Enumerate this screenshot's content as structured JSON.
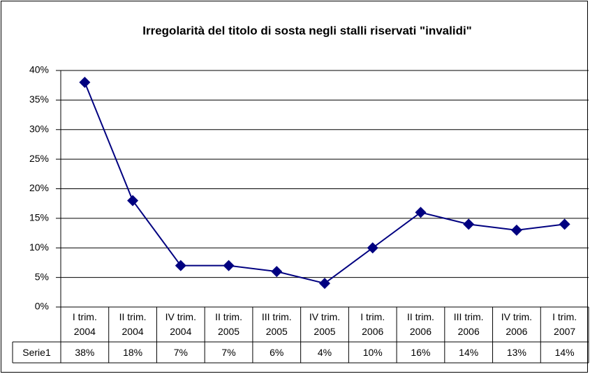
{
  "chart_data": {
    "type": "line",
    "title": "Irregolarità del titolo di sosta negli stalli riservati \"invalidi\"",
    "categories": [
      "I trim. 2004",
      "II trim. 2004",
      "IV trim. 2004",
      "II trim. 2005",
      "III trim. 2005",
      "IV trim. 2005",
      "I trim. 2006",
      "II trim. 2006",
      "III trim. 2006",
      "IV trim. 2006",
      "I trim. 2007"
    ],
    "series": [
      {
        "name": "Serie1",
        "color": "#000080",
        "values": [
          38,
          18,
          7,
          7,
          6,
          4,
          10,
          16,
          14,
          13,
          14
        ],
        "value_labels": [
          "38%",
          "18%",
          "7%",
          "7%",
          "6%",
          "4%",
          "10%",
          "16%",
          "14%",
          "13%",
          "14%"
        ]
      }
    ],
    "ylim": [
      0,
      40
    ],
    "yticks": [
      {
        "value": 0,
        "label": "0%"
      },
      {
        "value": 5,
        "label": "5%"
      },
      {
        "value": 10,
        "label": "10%"
      },
      {
        "value": 15,
        "label": "15%"
      },
      {
        "value": 20,
        "label": "20%"
      },
      {
        "value": 25,
        "label": "25%"
      },
      {
        "value": 30,
        "label": "30%"
      },
      {
        "value": 35,
        "label": "35%"
      },
      {
        "value": 40,
        "label": "40%"
      }
    ],
    "grid": true
  }
}
